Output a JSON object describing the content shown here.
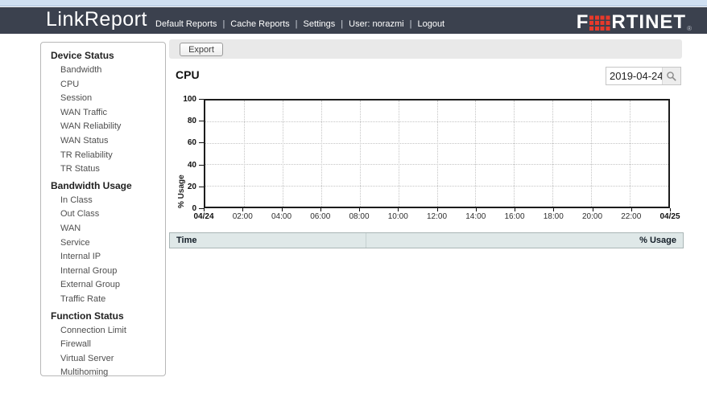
{
  "header": {
    "app_title": "LinkReport",
    "nav": [
      {
        "label": "Default Reports"
      },
      {
        "label": "Cache Reports"
      },
      {
        "label": "Settings"
      },
      {
        "label": "User: norazmi"
      },
      {
        "label": "Logout"
      }
    ],
    "nav_separator": "|",
    "logo": {
      "part1": "F",
      "part2": "RTINET",
      "reg": "®",
      "grid_color": "#e8392a"
    }
  },
  "sidebar": {
    "sections": [
      {
        "title": "Device Status",
        "items": [
          "Bandwidth",
          "CPU",
          "Session",
          "WAN Traffic",
          "WAN Reliability",
          "WAN Status",
          "TR Reliability",
          "TR Status"
        ]
      },
      {
        "title": "Bandwidth Usage",
        "items": [
          "In Class",
          "Out Class",
          "WAN",
          "Service",
          "Internal IP",
          "Internal Group",
          "External Group",
          "Traffic Rate"
        ]
      },
      {
        "title": "Function Status",
        "items": [
          "Connection Limit",
          "Firewall",
          "Virtual Server",
          "Multihoming"
        ]
      }
    ]
  },
  "toolbar": {
    "export_label": "Export"
  },
  "main": {
    "page_title": "CPU",
    "date_value": "2019-04-24"
  },
  "chart_data": {
    "type": "line",
    "title": "CPU",
    "xlabel": "",
    "ylabel": "% Usage",
    "ylim": [
      0,
      100
    ],
    "yticks": [
      0,
      20,
      40,
      60,
      80,
      100
    ],
    "xticks": [
      "04/24",
      "02:00",
      "04:00",
      "06:00",
      "08:00",
      "10:00",
      "12:00",
      "14:00",
      "16:00",
      "18:00",
      "20:00",
      "22:00",
      "04/25"
    ],
    "grid": true,
    "legend": false,
    "series": []
  },
  "table": {
    "columns": [
      "Time",
      "% Usage"
    ],
    "rows": []
  }
}
